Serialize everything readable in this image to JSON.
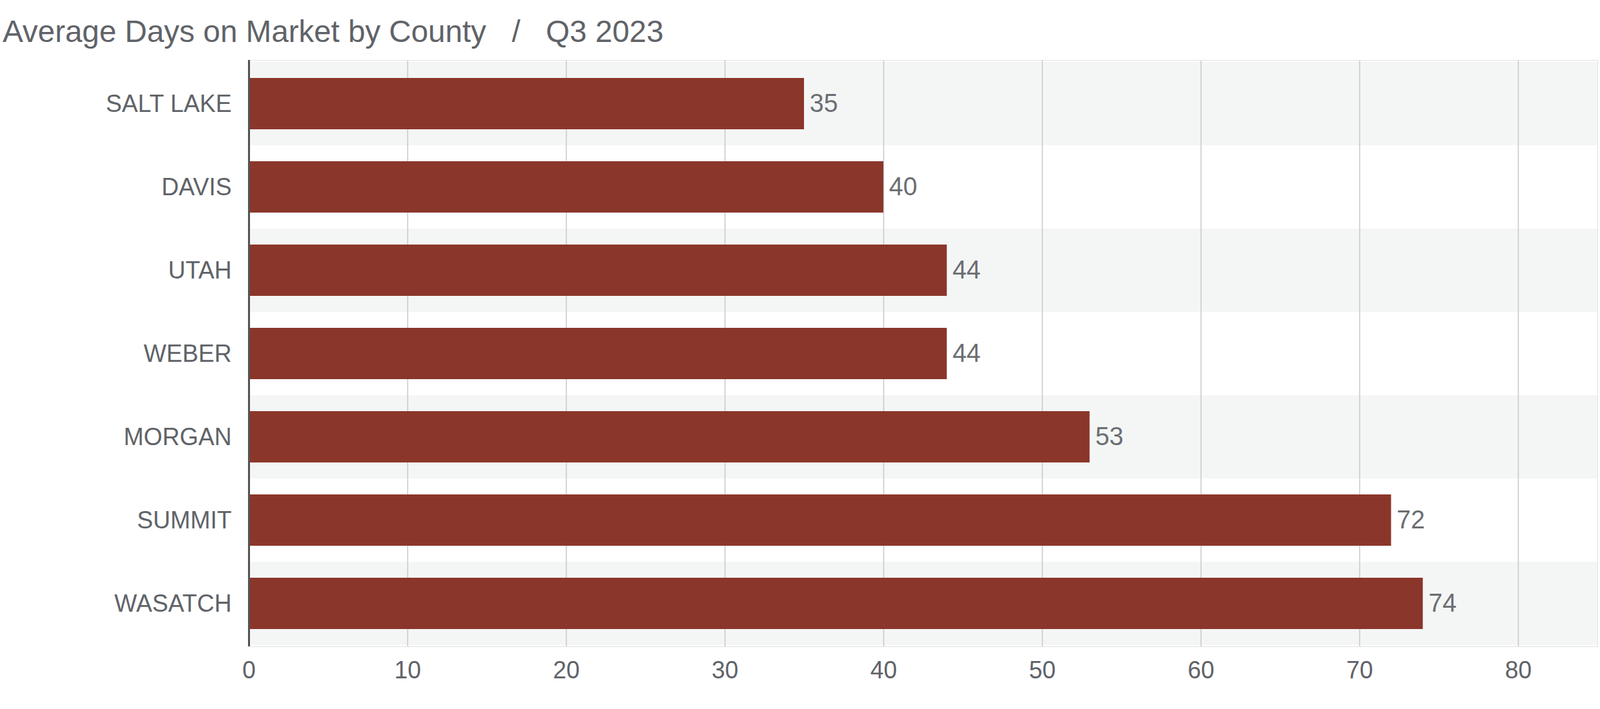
{
  "chart_data": {
    "type": "bar",
    "title": "Average Days on Market by County   /   Q3 2023",
    "orientation": "horizontal",
    "categories": [
      "SALT LAKE",
      "DAVIS",
      "UTAH",
      "WEBER",
      "MORGAN",
      "SUMMIT",
      "WASATCH"
    ],
    "values": [
      35,
      40,
      44,
      44,
      53,
      72,
      74
    ],
    "color": "#8b362b",
    "xlim": [
      0,
      85
    ],
    "xticks": [
      0,
      10,
      20,
      30,
      40,
      50,
      60,
      70,
      80
    ],
    "grid": true,
    "data_labels": true
  }
}
